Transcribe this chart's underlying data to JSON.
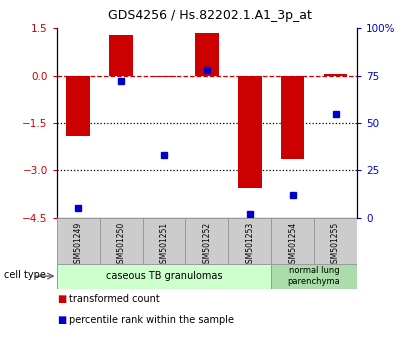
{
  "title": "GDS4256 / Hs.82202.1.A1_3p_at",
  "samples": [
    "GSM501249",
    "GSM501250",
    "GSM501251",
    "GSM501252",
    "GSM501253",
    "GSM501254",
    "GSM501255"
  ],
  "transformed_count": [
    -1.9,
    1.3,
    -0.05,
    1.35,
    -3.55,
    -2.65,
    0.05
  ],
  "percentile_rank": [
    5,
    72,
    33,
    78,
    2,
    12,
    55
  ],
  "bar_color": "#cc0000",
  "dot_color": "#0000cc",
  "left_ylim": [
    -4.5,
    1.5
  ],
  "right_ylim": [
    0,
    100
  ],
  "left_yticks": [
    1.5,
    0,
    -1.5,
    -3,
    -4.5
  ],
  "right_yticks": [
    100,
    75,
    50,
    25,
    0
  ],
  "right_yticklabels": [
    "100%",
    "75",
    "50",
    "25",
    "0"
  ],
  "dotted_lines": [
    -1.5,
    -3.0
  ],
  "group1_label": "caseous TB granulomas",
  "group2_label": "normal lung\nparenchyma",
  "group1_color": "#ccffcc",
  "group2_color": "#aaddaa",
  "cell_type_label": "cell type",
  "legend1_label": "transformed count",
  "legend2_label": "percentile rank within the sample",
  "bar_width": 0.55,
  "label_box_color": "#cccccc",
  "label_box_edge": "#999999"
}
